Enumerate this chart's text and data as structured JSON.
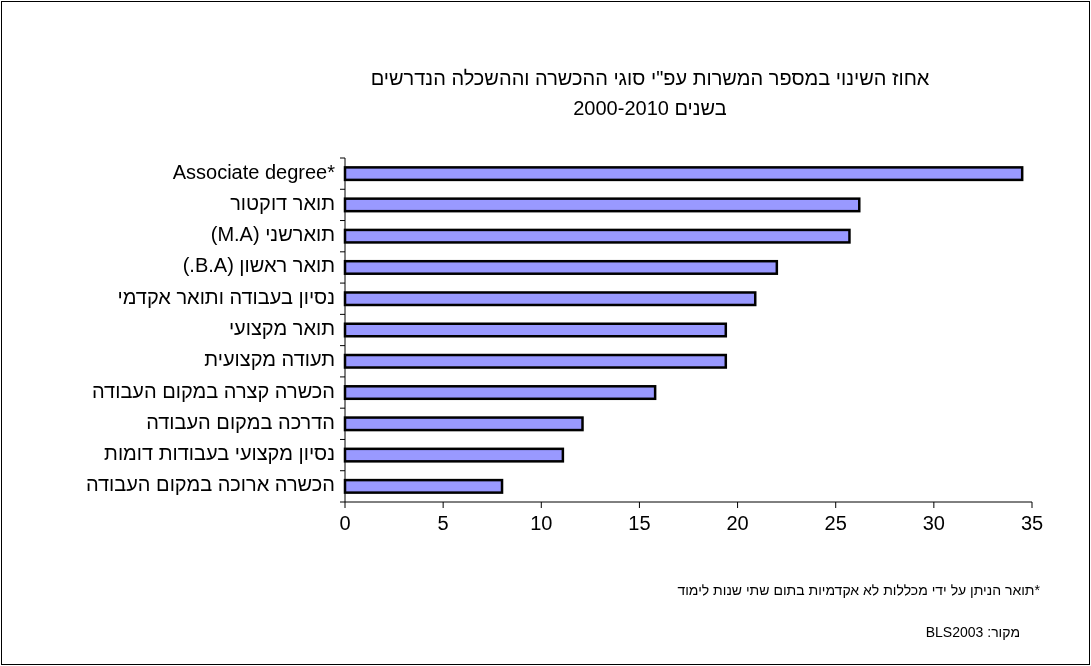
{
  "chart_data": {
    "type": "bar",
    "orientation": "horizontal",
    "title": "אחוז השינוי במספר המשרות עפ\"י סוגי ההכשרה וההשכלה הנדרשים\nבשנים 2000-2010",
    "categories": [
      "Associate degree*",
      "תואר דוקטור",
      "תוארשני (M.A)",
      "תואר ראשון (B.A.)",
      "נסיון בעבודה ותואר אקדמי",
      "תואר מקצועי",
      "תעודה מקצועית",
      "הכשרה קצרה במקום העבודה",
      "הדרכה במקום העבודה",
      "נסיון מקצועי בעבודות דומות",
      "הכשרה ארוכה במקום העבודה"
    ],
    "values": [
      34.5,
      26.2,
      25.7,
      22.0,
      20.9,
      19.4,
      19.4,
      15.8,
      12.1,
      11.1,
      8.0
    ],
    "color": "#9999ff",
    "xlim": [
      0,
      35
    ],
    "xticks": [
      0,
      5,
      10,
      15,
      20,
      25,
      30,
      35
    ],
    "annotations": [
      "*תואר הניתן על ידי מכללות לא אקדמיות בתום שתי שנות לימוד",
      "מקור: BLS2003"
    ]
  }
}
